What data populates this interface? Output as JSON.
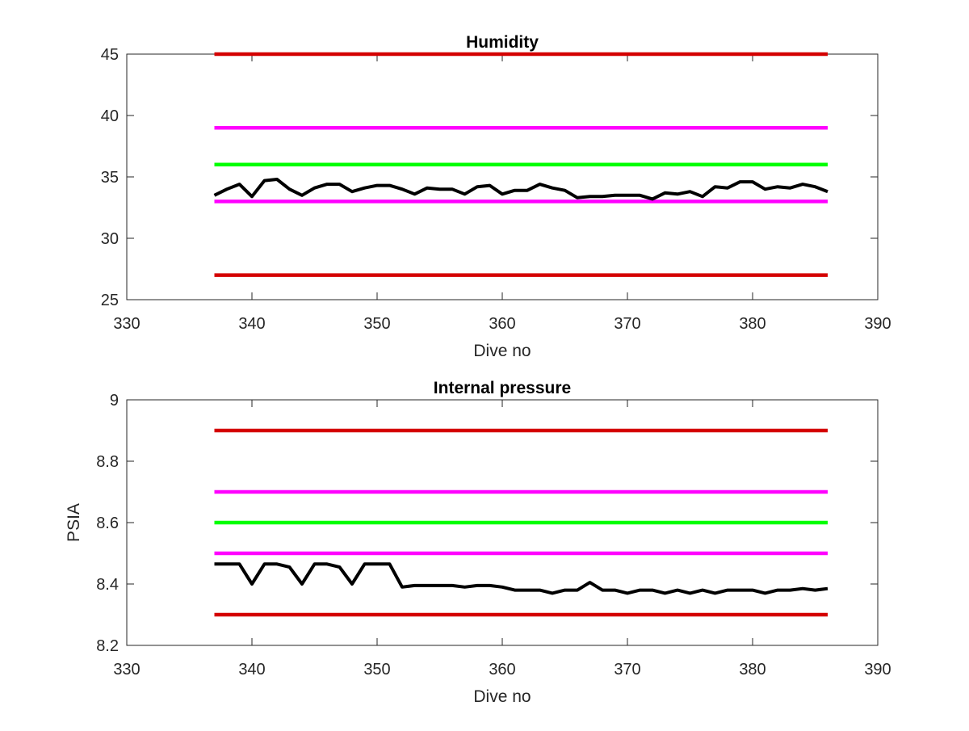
{
  "chart_data": [
    {
      "type": "line",
      "title": "Humidity",
      "xlabel": "Dive no",
      "ylabel": "",
      "xlim": [
        330,
        390
      ],
      "ylim": [
        25,
        45
      ],
      "xticks": [
        "330",
        "340",
        "350",
        "360",
        "370",
        "380",
        "390"
      ],
      "yticks": [
        "25",
        "30",
        "35",
        "40",
        "45"
      ],
      "grid": false,
      "series": [
        {
          "role": "upper-red-limit",
          "color": "#d40000",
          "x": [
            337,
            386
          ],
          "y": [
            45,
            45
          ]
        },
        {
          "role": "upper-magenta-limit",
          "color": "#ff00ff",
          "x": [
            337,
            386
          ],
          "y": [
            39,
            39
          ]
        },
        {
          "role": "green-target",
          "color": "#00ff00",
          "x": [
            337,
            386
          ],
          "y": [
            36,
            36
          ]
        },
        {
          "role": "lower-magenta-limit",
          "color": "#ff00ff",
          "x": [
            337,
            386
          ],
          "y": [
            33,
            33
          ]
        },
        {
          "role": "lower-red-limit",
          "color": "#d40000",
          "x": [
            337,
            386
          ],
          "y": [
            27,
            27
          ]
        },
        {
          "role": "measurement",
          "color": "#000000",
          "x": [
            337,
            338,
            339,
            340,
            341,
            342,
            343,
            344,
            345,
            346,
            347,
            348,
            349,
            350,
            351,
            352,
            353,
            354,
            355,
            356,
            357,
            358,
            359,
            360,
            361,
            362,
            363,
            364,
            365,
            366,
            367,
            368,
            369,
            370,
            371,
            372,
            373,
            374,
            375,
            376,
            377,
            378,
            379,
            380,
            381,
            382,
            383,
            384,
            385,
            386
          ],
          "y": [
            33.5,
            34.0,
            34.4,
            33.4,
            34.7,
            34.8,
            34.0,
            33.5,
            34.1,
            34.4,
            34.4,
            33.8,
            34.1,
            34.3,
            34.3,
            34.0,
            33.6,
            34.1,
            34.0,
            34.0,
            33.6,
            34.2,
            34.3,
            33.6,
            33.9,
            33.9,
            34.4,
            34.1,
            33.9,
            33.3,
            33.4,
            33.4,
            33.5,
            33.5,
            33.5,
            33.2,
            33.7,
            33.6,
            33.8,
            33.4,
            34.2,
            34.1,
            34.6,
            34.6,
            34.0,
            34.2,
            34.1,
            34.4,
            34.2,
            33.8
          ]
        }
      ]
    },
    {
      "type": "line",
      "title": "Internal pressure",
      "xlabel": "Dive no",
      "ylabel": "PSIA",
      "xlim": [
        330,
        390
      ],
      "ylim": [
        8.2,
        9
      ],
      "xticks": [
        "330",
        "340",
        "350",
        "360",
        "370",
        "380",
        "390"
      ],
      "yticks": [
        "8.2",
        "8.4",
        "8.6",
        "8.8",
        "9"
      ],
      "grid": false,
      "series": [
        {
          "role": "upper-red-limit",
          "color": "#d40000",
          "x": [
            337,
            386
          ],
          "y": [
            8.9,
            8.9
          ]
        },
        {
          "role": "upper-magenta-limit",
          "color": "#ff00ff",
          "x": [
            337,
            386
          ],
          "y": [
            8.7,
            8.7
          ]
        },
        {
          "role": "green-target",
          "color": "#00ff00",
          "x": [
            337,
            386
          ],
          "y": [
            8.6,
            8.6
          ]
        },
        {
          "role": "lower-magenta-limit",
          "color": "#ff00ff",
          "x": [
            337,
            386
          ],
          "y": [
            8.5,
            8.5
          ]
        },
        {
          "role": "lower-red-limit",
          "color": "#d40000",
          "x": [
            337,
            386
          ],
          "y": [
            8.3,
            8.3
          ]
        },
        {
          "role": "measurement",
          "color": "#000000",
          "x": [
            337,
            338,
            339,
            340,
            341,
            342,
            343,
            344,
            345,
            346,
            347,
            348,
            349,
            350,
            351,
            352,
            353,
            354,
            355,
            356,
            357,
            358,
            359,
            360,
            361,
            362,
            363,
            364,
            365,
            366,
            367,
            368,
            369,
            370,
            371,
            372,
            373,
            374,
            375,
            376,
            377,
            378,
            379,
            380,
            381,
            382,
            383,
            384,
            385,
            386
          ],
          "y": [
            8.465,
            8.465,
            8.465,
            8.4,
            8.465,
            8.465,
            8.455,
            8.4,
            8.465,
            8.465,
            8.455,
            8.4,
            8.465,
            8.465,
            8.465,
            8.39,
            8.395,
            8.395,
            8.395,
            8.395,
            8.39,
            8.395,
            8.395,
            8.39,
            8.38,
            8.38,
            8.38,
            8.37,
            8.38,
            8.38,
            8.405,
            8.38,
            8.38,
            8.37,
            8.38,
            8.38,
            8.37,
            8.38,
            8.37,
            8.38,
            8.37,
            8.38,
            8.38,
            8.38,
            8.37,
            8.38,
            8.38,
            8.385,
            8.38,
            8.385
          ]
        }
      ]
    }
  ]
}
